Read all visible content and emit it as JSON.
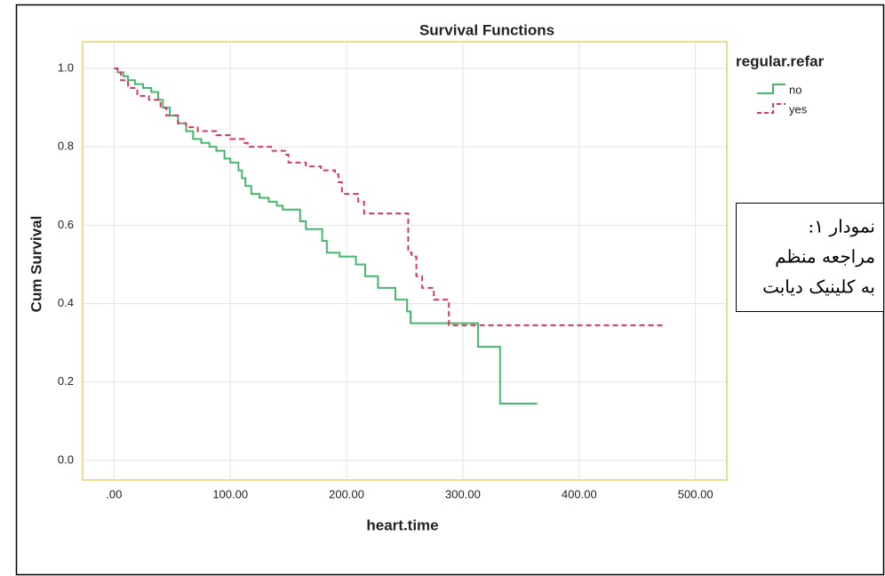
{
  "chart_data": {
    "type": "step",
    "title": "Survival Functions",
    "x_label": "heart.time",
    "y_label": "Cum Survival",
    "legend_title": "regular.refar",
    "legend_position": "right",
    "grid": true,
    "xlim": [
      -27,
      527
    ],
    "ylim": [
      -0.05,
      1.068
    ],
    "xticks": [
      {
        "value": 0,
        "label": ".00"
      },
      {
        "value": 100,
        "label": "100.00"
      },
      {
        "value": 200,
        "label": "200.00"
      },
      {
        "value": 300,
        "label": "300.00"
      },
      {
        "value": 400,
        "label": "400.00"
      },
      {
        "value": 500,
        "label": "500.00"
      }
    ],
    "yticks": [
      {
        "value": 0,
        "label": "0.0"
      },
      0.2,
      0.4,
      0.6,
      0.8,
      {
        "value": 1,
        "label": "1.0"
      }
    ],
    "series": [
      {
        "name": "no",
        "color": "#45b86e",
        "dash": false,
        "x": [
          0,
          3,
          8,
          12,
          18,
          25,
          32,
          38,
          42,
          48,
          55,
          62,
          68,
          75,
          82,
          88,
          95,
          100,
          107,
          110,
          113,
          118,
          125,
          133,
          140,
          145,
          160,
          165,
          179,
          183,
          194,
          208,
          216,
          227,
          242,
          252,
          255,
          313,
          332,
          364
        ],
        "values": [
          1.0,
          0.99,
          0.98,
          0.97,
          0.96,
          0.95,
          0.94,
          0.92,
          0.9,
          0.88,
          0.86,
          0.84,
          0.82,
          0.81,
          0.8,
          0.79,
          0.77,
          0.76,
          0.74,
          0.72,
          0.7,
          0.68,
          0.67,
          0.66,
          0.65,
          0.64,
          0.61,
          0.59,
          0.56,
          0.53,
          0.52,
          0.5,
          0.47,
          0.44,
          0.41,
          0.38,
          0.35,
          0.29,
          0.145,
          0.145
        ]
      },
      {
        "name": "yes",
        "color": "#d83a5e",
        "dash": true,
        "x": [
          0,
          3,
          6,
          12,
          20,
          30,
          40,
          45,
          55,
          62,
          72,
          88,
          100,
          112,
          115,
          135,
          148,
          150,
          165,
          178,
          190,
          193,
          196,
          210,
          215,
          253,
          256,
          260,
          265,
          275,
          288,
          474
        ],
        "values": [
          1.0,
          0.99,
          0.97,
          0.95,
          0.93,
          0.92,
          0.9,
          0.88,
          0.86,
          0.85,
          0.84,
          0.83,
          0.82,
          0.81,
          0.8,
          0.79,
          0.78,
          0.76,
          0.75,
          0.74,
          0.73,
          0.71,
          0.68,
          0.66,
          0.63,
          0.53,
          0.52,
          0.47,
          0.44,
          0.41,
          0.345,
          0.345
        ]
      }
    ],
    "annotation": [
      "نمودار ۱:",
      "مراجعه منظم",
      "به کلینیک دیابت"
    ]
  }
}
